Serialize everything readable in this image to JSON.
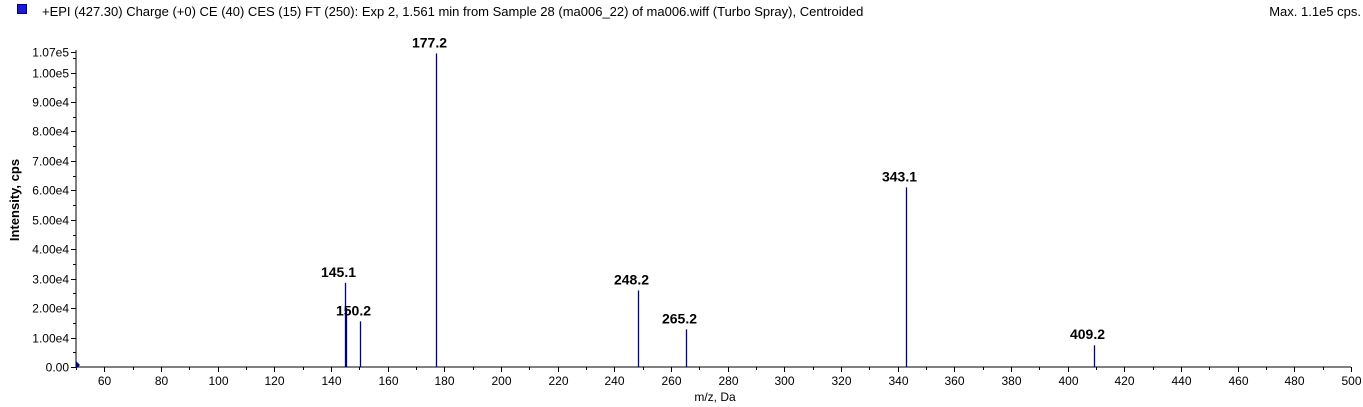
{
  "header": {
    "title": "+EPI (427.30) Charge (+0) CE (40) CES (15) FT (250): Exp 2, 1.561 min from Sample 28 (ma006_22) of ma006.wiff (Turbo Spray), Centroided",
    "max": "Max. 1.1e5 cps."
  },
  "colors": {
    "peak": "#000080",
    "swatch": "#1b1bd6",
    "axis": "#000000"
  },
  "chart_data": {
    "type": "bar",
    "title": "+EPI (427.30) Charge (+0) CE (40) CES (15) FT (250): Exp 2, 1.561 min from Sample 28 (ma006_22) of ma006.wiff (Turbo Spray), Centroided",
    "xlabel": "m/z, Da",
    "ylabel": "Intensity, cps",
    "xlim": [
      50,
      500
    ],
    "ylim": [
      0,
      107000
    ],
    "y_top_label": "1.07e5",
    "x_ticks": [
      "60",
      "80",
      "100",
      "120",
      "140",
      "160",
      "180",
      "200",
      "220",
      "240",
      "260",
      "280",
      "300",
      "320",
      "340",
      "360",
      "380",
      "400",
      "420",
      "440",
      "460",
      "480",
      "500"
    ],
    "y_ticks": [
      {
        "value": 0,
        "label": "0.00"
      },
      {
        "value": 10000,
        "label": "1.00e4"
      },
      {
        "value": 20000,
        "label": "2.00e4"
      },
      {
        "value": 30000,
        "label": "3.00e4"
      },
      {
        "value": 40000,
        "label": "4.00e4"
      },
      {
        "value": 50000,
        "label": "5.00e4"
      },
      {
        "value": 60000,
        "label": "6.00e4"
      },
      {
        "value": 70000,
        "label": "7.00e4"
      },
      {
        "value": 80000,
        "label": "8.00e4"
      },
      {
        "value": 90000,
        "label": "9.00e4"
      },
      {
        "value": 100000,
        "label": "1.00e5"
      },
      {
        "value": 107000,
        "label": "1.07e5"
      }
    ],
    "peaks": [
      {
        "mz": 145.1,
        "intensity": 28600,
        "label": "145.1"
      },
      {
        "mz": 145.3,
        "intensity": 20000,
        "label": ""
      },
      {
        "mz": 150.2,
        "intensity": 15500,
        "label": "150.2"
      },
      {
        "mz": 177.2,
        "intensity": 106500,
        "label": "177.2"
      },
      {
        "mz": 248.2,
        "intensity": 26000,
        "label": "248.2"
      },
      {
        "mz": 265.2,
        "intensity": 12800,
        "label": "265.2"
      },
      {
        "mz": 343.1,
        "intensity": 61000,
        "label": "343.1"
      },
      {
        "mz": 409.2,
        "intensity": 7400,
        "label": "409.2"
      }
    ],
    "grid": false,
    "legend": "top-left"
  }
}
